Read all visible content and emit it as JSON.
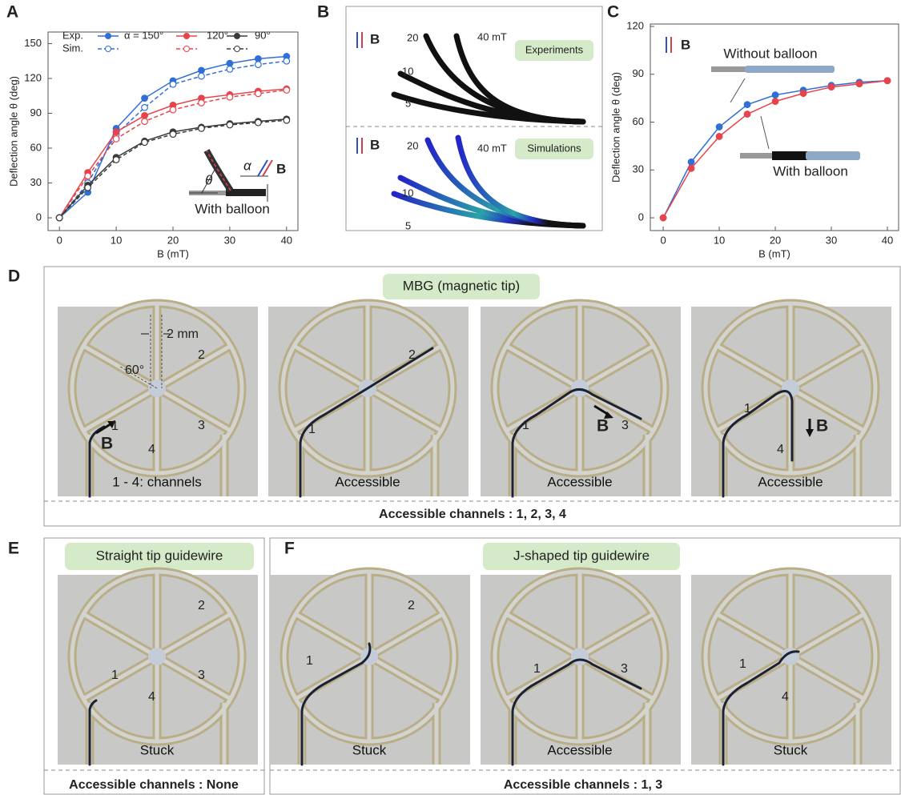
{
  "chart_data": [
    {
      "type": "line",
      "panel": "A",
      "xlabel": "B (mT)",
      "ylabel": "Deflection angle θ (deg)",
      "x": [
        0,
        5,
        10,
        15,
        20,
        25,
        30,
        35,
        40
      ],
      "xlim": [
        -2,
        42
      ],
      "xticks": [
        0,
        10,
        20,
        30,
        40
      ],
      "ylim": [
        -11,
        160
      ],
      "yticks": [
        0,
        30,
        60,
        90,
        120,
        150
      ],
      "legend_rows": [
        "Exp.",
        "Sim."
      ],
      "series": [
        {
          "name": "α = 150°",
          "color": "#2f6fd6",
          "style": "solid",
          "marker": "filled",
          "values": [
            0,
            22,
            77,
            103,
            118,
            127,
            133,
            137,
            139
          ]
        },
        {
          "color": "#2f6fd6",
          "style": "dashed",
          "marker": "open",
          "values": [
            0,
            30,
            72,
            95,
            115,
            122,
            128,
            132,
            135
          ]
        },
        {
          "name": "120°",
          "color": "#e8434a",
          "style": "solid",
          "marker": "filled",
          "values": [
            0,
            39,
            74,
            88,
            97,
            103,
            106,
            109,
            111
          ]
        },
        {
          "color": "#e8434a",
          "style": "dashed",
          "marker": "open",
          "values": [
            0,
            36,
            68,
            83,
            93,
            99,
            104,
            107,
            110
          ]
        },
        {
          "name": "90°",
          "color": "#3a3a3a",
          "style": "solid",
          "marker": "filled",
          "values": [
            0,
            28,
            52,
            66,
            74,
            78,
            81,
            83,
            85
          ]
        },
        {
          "color": "#3a3a3a",
          "style": "dashed",
          "marker": "open",
          "values": [
            0,
            26,
            50,
            65,
            72,
            77,
            80,
            82,
            84
          ]
        }
      ],
      "annotations": {
        "inset": "With balloon",
        "theta": "θ",
        "alpha": "α",
        "field": "B"
      }
    },
    {
      "type": "line",
      "panel": "C",
      "xlabel": "B (mT)",
      "ylabel": "Deflection angle θ (deg)",
      "x": [
        0,
        5,
        10,
        15,
        20,
        25,
        30,
        35,
        40
      ],
      "xlim": [
        -2.3,
        42
      ],
      "xticks": [
        0,
        10,
        20,
        30,
        40
      ],
      "ylim": [
        -8,
        121.5
      ],
      "yticks": [
        0,
        30,
        60,
        90,
        120
      ],
      "series": [
        {
          "name": "Without balloon",
          "color": "#2f6fd6",
          "style": "solid",
          "marker": "filled",
          "values": [
            0,
            35,
            57,
            71,
            77,
            80,
            83,
            85,
            86
          ]
        },
        {
          "name": "With balloon",
          "color": "#e8434a",
          "style": "solid",
          "marker": "filled",
          "values": [
            0,
            31,
            51,
            65,
            73,
            78,
            82,
            84,
            86
          ]
        }
      ],
      "annotations": {
        "field": "B"
      }
    }
  ],
  "panel_B": {
    "label": "B",
    "top": {
      "tag": "Experiments",
      "field": "B",
      "levels": [
        "20",
        "10",
        "5"
      ],
      "max_field": "40 mT"
    },
    "bottom": {
      "tag": "Simulations",
      "field": "B",
      "levels": [
        "20",
        "10",
        "5"
      ],
      "max_field": "40 mT"
    }
  },
  "panel_D": {
    "label": "D",
    "title": "MBG (magnetic tip)",
    "images": [
      {
        "caption": "1 - 4: channels",
        "channels": [
          "1",
          "2",
          "3",
          "4"
        ],
        "scale": "2 mm",
        "angle": "60°",
        "field": "B"
      },
      {
        "caption": "Accessible",
        "channels": [
          "1",
          "2"
        ]
      },
      {
        "caption": "Accessible",
        "channels": [
          "1",
          "3"
        ],
        "field": "B"
      },
      {
        "caption": "Accessible",
        "channels": [
          "1",
          "4"
        ],
        "field": "B"
      }
    ],
    "summary": "Accessible channels : 1, 2, 3, 4"
  },
  "panel_E": {
    "label": "E",
    "title": "Straight tip guidewire",
    "images": [
      {
        "caption": "Stuck",
        "channels": [
          "1",
          "2",
          "3",
          "4"
        ]
      }
    ],
    "summary": "Accessible channels : None"
  },
  "panel_F": {
    "label": "F",
    "title": "J-shaped tip guidewire",
    "images": [
      {
        "caption": "Stuck",
        "channels": [
          "1",
          "2"
        ]
      },
      {
        "caption": "Accessible",
        "channels": [
          "1",
          "3"
        ]
      },
      {
        "caption": "Stuck",
        "channels": [
          "1",
          "4"
        ]
      }
    ],
    "summary": "Accessible channels : 1, 3"
  }
}
